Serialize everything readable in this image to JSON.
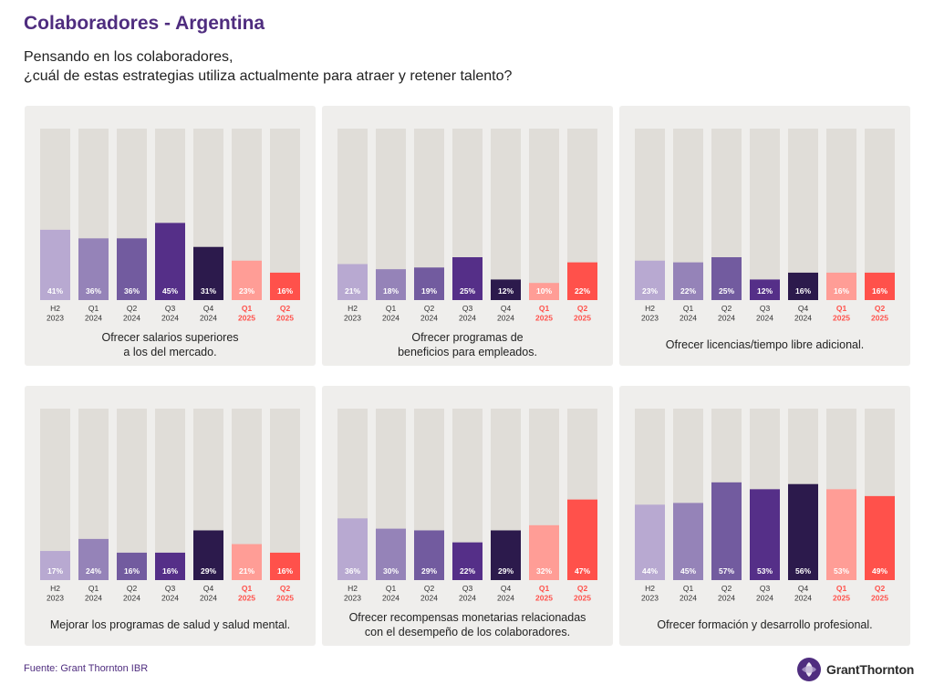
{
  "header": {
    "title": "Colaboradores - Argentina",
    "subtitle_lines": [
      "Pensando en los colaboradores,",
      "¿cuál de estas estrategias utiliza actualmente para atraer y retener talento?"
    ]
  },
  "footer": {
    "source": "Fuente: Grant Thornton IBR",
    "logo_text": "GrantThornton"
  },
  "colors": {
    "track": "#e0ddd8",
    "panel": "#efeeec",
    "bars": [
      "#b8a9d1",
      "#9583b8",
      "#725b9f",
      "#552f88",
      "#2c1a4c",
      "#ff9d96",
      "#ff514b"
    ],
    "axis_label": "#333333",
    "axis_label_highlight": "#ff514b"
  },
  "chart_data": [
    {
      "type": "bar",
      "categories": [
        "H2 2023",
        "Q1 2024",
        "Q2 2024",
        "Q3 2024",
        "Q4 2024",
        "Q1 2025",
        "Q2 2025"
      ],
      "values": [
        41,
        36,
        36,
        45,
        31,
        23,
        16
      ],
      "value_labels": [
        "41%",
        "36%",
        "36%",
        "45%",
        "31%",
        "23%",
        "16%"
      ],
      "caption": [
        "Ofrecer salarios superiores",
        "a los del mercado."
      ],
      "ylim": [
        0,
        100
      ]
    },
    {
      "type": "bar",
      "categories": [
        "H2 2023",
        "Q1 2024",
        "Q2 2024",
        "Q3 2024",
        "Q4 2024",
        "Q1 2025",
        "Q2 2025"
      ],
      "values": [
        21,
        18,
        19,
        25,
        12,
        10,
        22
      ],
      "value_labels": [
        "21%",
        "18%",
        "19%",
        "25%",
        "12%",
        "10%",
        "22%"
      ],
      "caption": [
        "Ofrecer programas de",
        "beneficios para empleados."
      ],
      "ylim": [
        0,
        100
      ]
    },
    {
      "type": "bar",
      "categories": [
        "H2 2023",
        "Q1 2024",
        "Q2 2024",
        "Q3 2024",
        "Q4 2024",
        "Q1 2025",
        "Q2 2025"
      ],
      "values": [
        23,
        22,
        25,
        12,
        16,
        16,
        16
      ],
      "value_labels": [
        "23%",
        "22%",
        "25%",
        "12%",
        "16%",
        "16%",
        "16%"
      ],
      "caption": [
        "Ofrecer licencias/tiempo libre adicional."
      ],
      "ylim": [
        0,
        100
      ]
    },
    {
      "type": "bar",
      "categories": [
        "H2 2023",
        "Q1 2024",
        "Q2 2024",
        "Q3 2024",
        "Q4 2024",
        "Q1 2025",
        "Q2 2025"
      ],
      "values": [
        17,
        24,
        16,
        16,
        29,
        21,
        16
      ],
      "value_labels": [
        "17%",
        "24%",
        "16%",
        "16%",
        "29%",
        "21%",
        "16%"
      ],
      "caption": [
        "Mejorar los programas de salud y salud mental."
      ],
      "ylim": [
        0,
        100
      ]
    },
    {
      "type": "bar",
      "categories": [
        "H2 2023",
        "Q1 2024",
        "Q2 2024",
        "Q3 2024",
        "Q4 2024",
        "Q1 2025",
        "Q2 2025"
      ],
      "values": [
        36,
        30,
        29,
        22,
        29,
        32,
        47
      ],
      "value_labels": [
        "36%",
        "30%",
        "29%",
        "22%",
        "29%",
        "32%",
        "47%"
      ],
      "caption": [
        "Ofrecer recompensas monetarias relacionadas",
        "con el desempeño de los colaboradores."
      ],
      "ylim": [
        0,
        100
      ]
    },
    {
      "type": "bar",
      "categories": [
        "H2 2023",
        "Q1 2024",
        "Q2 2024",
        "Q3 2024",
        "Q4 2024",
        "Q1 2025",
        "Q2 2025"
      ],
      "values": [
        44,
        45,
        57,
        53,
        56,
        53,
        49
      ],
      "value_labels": [
        "44%",
        "45%",
        "57%",
        "53%",
        "56%",
        "53%",
        "49%"
      ],
      "caption": [
        "Ofrecer formación y desarrollo profesional."
      ],
      "ylim": [
        0,
        100
      ]
    }
  ]
}
